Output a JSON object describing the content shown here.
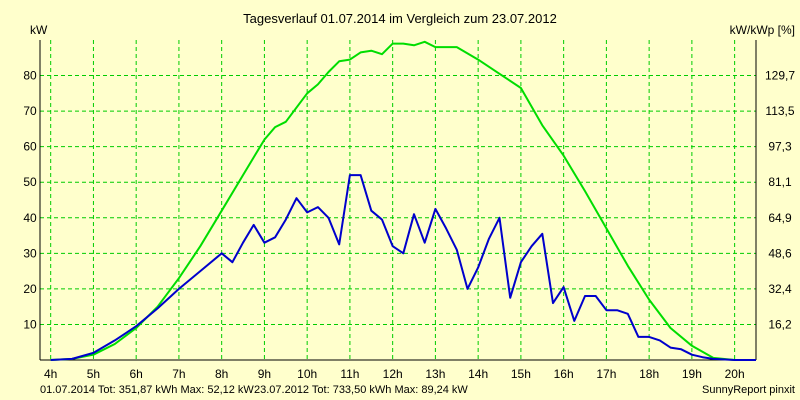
{
  "chart_data": {
    "type": "line",
    "title": "Tagesverlauf 01.07.2014 im Vergleich zum 23.07.2012",
    "ylabel_left": "kW",
    "ylabel_right": "kW/kWp [%]",
    "xlim": [
      3.75,
      20.5
    ],
    "ylim": [
      0,
      90
    ],
    "grid": true,
    "x_ticks": [
      4,
      5,
      6,
      7,
      8,
      9,
      10,
      11,
      12,
      13,
      14,
      15,
      16,
      17,
      18,
      19,
      20
    ],
    "x_tick_labels": [
      "4h",
      "5h",
      "6h",
      "7h",
      "8h",
      "9h",
      "10h",
      "11h",
      "12h",
      "13h",
      "14h",
      "15h",
      "16h",
      "17h",
      "18h",
      "19h",
      "20h"
    ],
    "y_ticks": [
      10,
      20,
      30,
      40,
      50,
      60,
      70,
      80
    ],
    "y_tick_labels": [
      "10",
      "20",
      "30",
      "40",
      "50",
      "60",
      "70",
      "80"
    ],
    "y2_tick_labels": [
      "16,2",
      "32,4",
      "48,6",
      "64,9",
      "81,1",
      "97,3",
      "113,5",
      "129,7"
    ],
    "series": [
      {
        "name": "23.07.2012",
        "color": "#00dd00",
        "x": [
          4.0,
          4.5,
          5.0,
          5.5,
          6.0,
          6.5,
          7.0,
          7.5,
          8.0,
          8.5,
          9.0,
          9.25,
          9.5,
          10.0,
          10.25,
          10.5,
          10.75,
          11.0,
          11.25,
          11.5,
          11.75,
          12.0,
          12.25,
          12.5,
          12.75,
          13.0,
          13.5,
          14.0,
          14.5,
          15.0,
          15.5,
          16.0,
          16.5,
          17.0,
          17.5,
          18.0,
          18.5,
          19.0,
          19.5,
          20.0,
          20.5
        ],
        "values": [
          0,
          0.3,
          1.5,
          4.5,
          9,
          15,
          23,
          32,
          42,
          52,
          62,
          65.5,
          67,
          75,
          77.5,
          81,
          84,
          84.5,
          86.5,
          87,
          86,
          89,
          89,
          88.5,
          89.5,
          88,
          88,
          84.5,
          80.5,
          76.5,
          66,
          57.5,
          47.5,
          37,
          26.5,
          17,
          9,
          4,
          0.6,
          0,
          0
        ]
      },
      {
        "name": "01.07.2014",
        "color": "#0000cc",
        "x": [
          4.0,
          4.5,
          5.0,
          5.5,
          6.0,
          6.5,
          7.0,
          7.5,
          8.0,
          8.25,
          8.5,
          8.75,
          9.0,
          9.25,
          9.5,
          9.75,
          10.0,
          10.25,
          10.5,
          10.75,
          11.0,
          11.25,
          11.5,
          11.75,
          12.0,
          12.25,
          12.5,
          12.75,
          13.0,
          13.25,
          13.5,
          13.75,
          14.0,
          14.25,
          14.5,
          14.75,
          15.0,
          15.25,
          15.5,
          15.75,
          16.0,
          16.25,
          16.5,
          16.75,
          17.0,
          17.25,
          17.5,
          17.75,
          18.0,
          18.25,
          18.5,
          18.75,
          19.0,
          19.25,
          19.5,
          20.0,
          20.5
        ],
        "values": [
          0,
          0.3,
          2,
          5.5,
          9.5,
          14.5,
          20,
          25,
          30,
          27.5,
          33,
          38,
          33,
          34.5,
          39.5,
          45.5,
          41.5,
          43,
          40,
          32.5,
          52,
          52,
          42,
          39.5,
          32,
          30,
          41,
          33,
          42.5,
          37,
          31,
          20,
          26,
          34,
          40,
          17.5,
          27.5,
          32,
          35.5,
          16,
          20.5,
          11,
          18,
          18,
          14,
          14,
          13,
          6.5,
          6.5,
          5.5,
          3.5,
          3,
          1.5,
          0.8,
          0.3,
          0,
          0
        ]
      }
    ]
  },
  "footer": {
    "series1_text": "01.07.2014 Tot: 351,87 kWh Max: 52,12 kW",
    "series2_text": "23.07.2012 Tot: 733,50 kWh Max: 89,24 kW",
    "credit": "SunnyReport pinxit"
  }
}
